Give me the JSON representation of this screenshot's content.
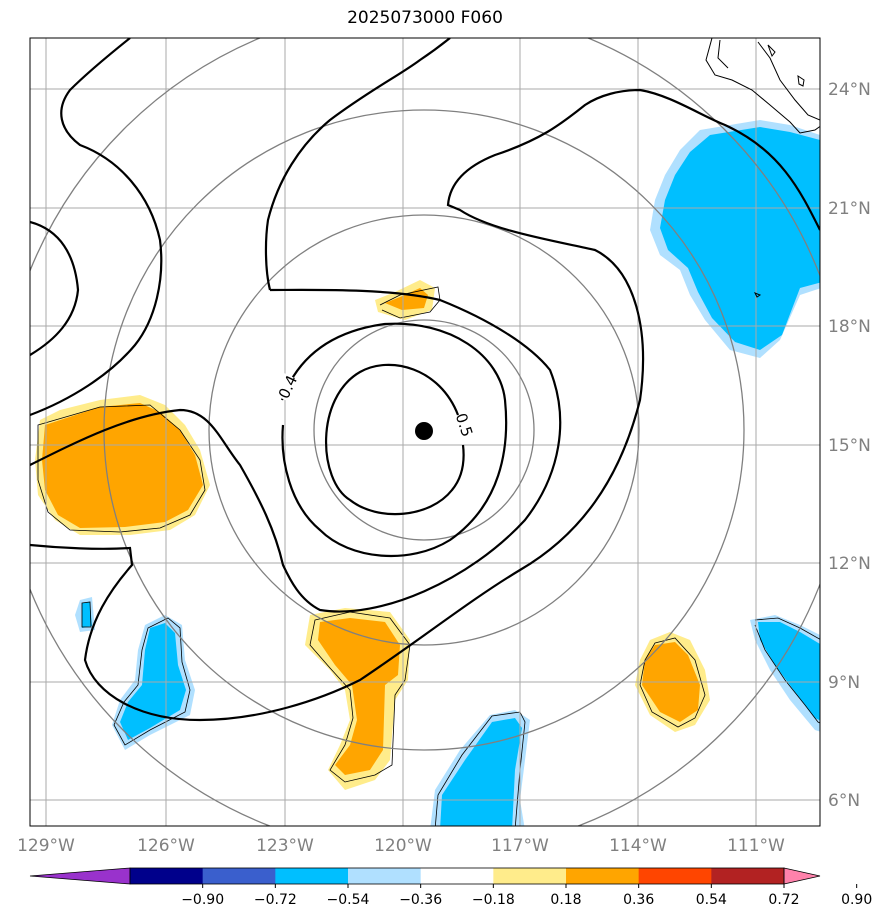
{
  "title": "2025073000 F060",
  "map": {
    "lon_ticks": [
      "129°W",
      "126°W",
      "123°W",
      "120°W",
      "117°W",
      "114°W",
      "111°W"
    ],
    "lat_ticks": [
      "6°N",
      "9°N",
      "12°N",
      "15°N",
      "18°N",
      "21°N",
      "24°N"
    ],
    "contour_labels": [
      "0.4",
      "0.5"
    ],
    "center_marker": {
      "lon": -119.8,
      "lat": 15.4
    },
    "range_rings": 4,
    "colors": {
      "fill_blue": "#00bfff",
      "fill_lightblue": "#b0e0ff",
      "fill_orange": "#ffa500",
      "fill_yellow": "#ffec8b"
    }
  },
  "colorbar": {
    "ticks": [
      "−0.90",
      "−0.72",
      "−0.54",
      "−0.36",
      "−0.18",
      "0.18",
      "0.36",
      "0.54",
      "0.72",
      "0.90"
    ],
    "colors": [
      "#9932cc",
      "#00008b",
      "#3a5fcd",
      "#00bfff",
      "#b0e0ff",
      "#ffffff",
      "#ffec8b",
      "#ffa500",
      "#ff4500",
      "#b22222",
      "#ff82ab"
    ]
  }
}
